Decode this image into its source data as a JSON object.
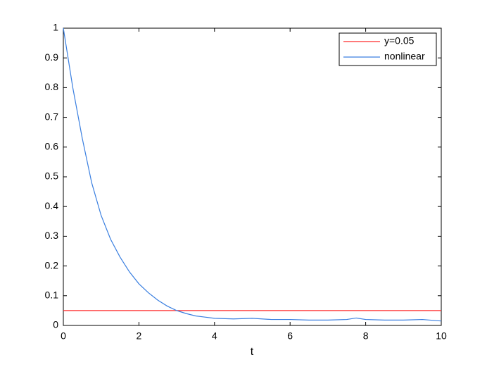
{
  "chart_data": {
    "type": "line",
    "xlabel": "t",
    "xlim": [
      0,
      10
    ],
    "ylim": [
      0,
      1
    ],
    "xticks": [
      0,
      2,
      4,
      6,
      8,
      10
    ],
    "yticks": [
      0,
      0.1,
      0.2,
      0.3,
      0.4,
      0.5,
      0.6,
      0.7,
      0.8,
      0.9,
      1
    ],
    "legend": "upper right",
    "series": [
      {
        "name": "y=0.05",
        "color": "#ff2a2a",
        "x": [
          0,
          10
        ],
        "values": [
          0.05,
          0.05
        ]
      },
      {
        "name": "nonlinear",
        "color": "#3a7fe0",
        "x": [
          0,
          0.25,
          0.5,
          0.75,
          1,
          1.25,
          1.5,
          1.75,
          2,
          2.25,
          2.5,
          2.75,
          3,
          3.25,
          3.5,
          3.75,
          4,
          4.5,
          5,
          5.5,
          6,
          6.5,
          7,
          7.5,
          7.75,
          8,
          8.5,
          9,
          9.5,
          10
        ],
        "values": [
          1.0,
          0.8,
          0.63,
          0.48,
          0.37,
          0.29,
          0.23,
          0.18,
          0.14,
          0.11,
          0.085,
          0.065,
          0.05,
          0.04,
          0.032,
          0.028,
          0.024,
          0.022,
          0.024,
          0.02,
          0.02,
          0.018,
          0.018,
          0.02,
          0.025,
          0.02,
          0.018,
          0.018,
          0.02,
          0.015
        ]
      }
    ]
  }
}
